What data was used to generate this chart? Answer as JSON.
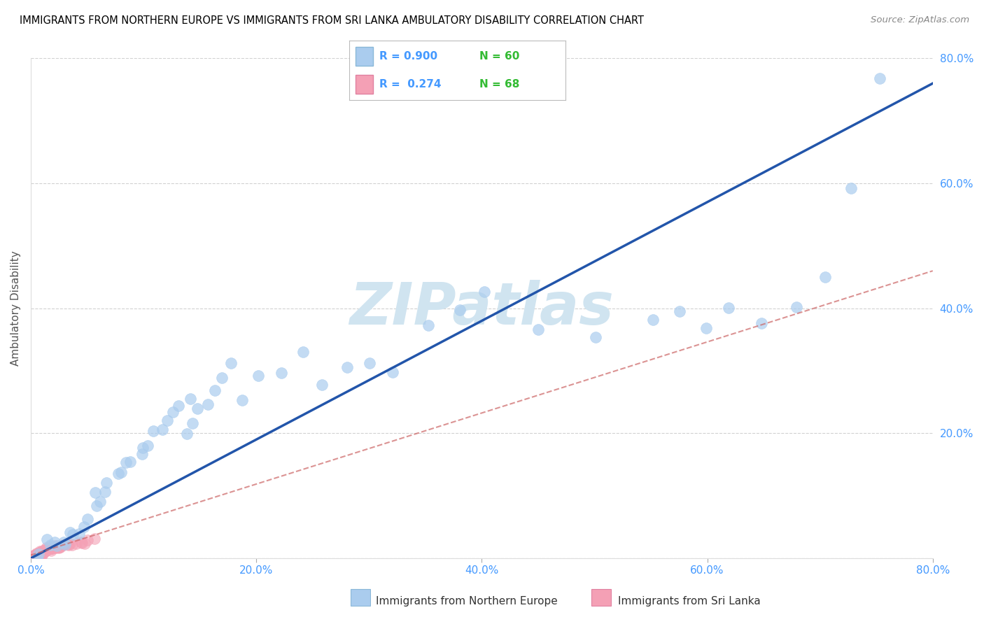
{
  "title": "IMMIGRANTS FROM NORTHERN EUROPE VS IMMIGRANTS FROM SRI LANKA AMBULATORY DISABILITY CORRELATION CHART",
  "source": "Source: ZipAtlas.com",
  "ylabel": "Ambulatory Disability",
  "xlim": [
    0,
    0.8
  ],
  "ylim": [
    0,
    0.8
  ],
  "xticks": [
    0.0,
    0.2,
    0.4,
    0.6,
    0.8
  ],
  "yticks": [
    0.0,
    0.2,
    0.4,
    0.6,
    0.8
  ],
  "xticklabels": [
    "0.0%",
    "20.0%",
    "40.0%",
    "60.0%",
    "80.0%"
  ],
  "yticklabels": [
    "",
    "20.0%",
    "40.0%",
    "60.0%",
    "80.0%"
  ],
  "legend_label1": "Immigrants from Northern Europe",
  "legend_label2": "Immigrants from Sri Lanka",
  "R1": 0.9,
  "N1": 60,
  "R2": 0.274,
  "N2": 68,
  "scatter1_color": "#aaccee",
  "scatter1_edge": "#aaccee",
  "scatter2_color": "#f4a0b5",
  "scatter2_edge": "#f4a0b5",
  "line1_color": "#2255aa",
  "line2_color": "#cc6666",
  "watermark": "ZIPatlas",
  "watermark_color": "#d0e4f0",
  "background_color": "#ffffff",
  "grid_color": "#cccccc",
  "title_color": "#000000",
  "tick_color": "#4499ff",
  "legend_r_color": "#4499ff",
  "legend_n_color": "#33bb33",
  "north_europe_x": [
    0.005,
    0.01,
    0.015,
    0.02,
    0.02,
    0.025,
    0.03,
    0.03,
    0.035,
    0.04,
    0.04,
    0.045,
    0.05,
    0.055,
    0.06,
    0.06,
    0.065,
    0.07,
    0.075,
    0.08,
    0.085,
    0.09,
    0.095,
    0.1,
    0.105,
    0.11,
    0.115,
    0.12,
    0.125,
    0.13,
    0.135,
    0.14,
    0.145,
    0.15,
    0.155,
    0.16,
    0.17,
    0.18,
    0.19,
    0.2,
    0.22,
    0.24,
    0.26,
    0.28,
    0.3,
    0.32,
    0.35,
    0.38,
    0.4,
    0.45,
    0.5,
    0.55,
    0.58,
    0.6,
    0.62,
    0.65,
    0.68,
    0.7,
    0.73,
    0.75
  ],
  "north_europe_y": [
    0.005,
    0.01,
    0.02,
    0.015,
    0.025,
    0.02,
    0.025,
    0.03,
    0.035,
    0.04,
    0.05,
    0.06,
    0.07,
    0.08,
    0.09,
    0.1,
    0.11,
    0.12,
    0.13,
    0.14,
    0.15,
    0.16,
    0.17,
    0.18,
    0.19,
    0.2,
    0.21,
    0.22,
    0.23,
    0.24,
    0.25,
    0.2,
    0.22,
    0.24,
    0.26,
    0.28,
    0.3,
    0.32,
    0.25,
    0.3,
    0.3,
    0.32,
    0.28,
    0.3,
    0.32,
    0.3,
    0.38,
    0.4,
    0.42,
    0.38,
    0.35,
    0.38,
    0.4,
    0.38,
    0.4,
    0.38,
    0.4,
    0.45,
    0.58,
    0.77
  ],
  "sri_lanka_x": [
    0.001,
    0.001,
    0.002,
    0.002,
    0.003,
    0.003,
    0.003,
    0.004,
    0.004,
    0.004,
    0.005,
    0.005,
    0.005,
    0.005,
    0.006,
    0.006,
    0.007,
    0.007,
    0.008,
    0.008,
    0.009,
    0.009,
    0.01,
    0.01,
    0.01,
    0.01,
    0.01,
    0.012,
    0.012,
    0.013,
    0.013,
    0.014,
    0.014,
    0.015,
    0.015,
    0.016,
    0.016,
    0.017,
    0.018,
    0.018,
    0.019,
    0.02,
    0.02,
    0.021,
    0.022,
    0.023,
    0.024,
    0.025,
    0.026,
    0.028,
    0.03,
    0.032,
    0.034,
    0.036,
    0.038,
    0.04,
    0.043,
    0.045,
    0.048,
    0.05,
    0.055,
    0.002,
    0.003,
    0.006,
    0.008,
    0.01,
    0.012,
    0.015
  ],
  "sri_lanka_y": [
    0.001,
    0.002,
    0.001,
    0.003,
    0.002,
    0.003,
    0.004,
    0.003,
    0.004,
    0.005,
    0.004,
    0.005,
    0.006,
    0.007,
    0.005,
    0.006,
    0.006,
    0.007,
    0.007,
    0.008,
    0.007,
    0.009,
    0.008,
    0.009,
    0.01,
    0.011,
    0.012,
    0.01,
    0.012,
    0.011,
    0.013,
    0.012,
    0.014,
    0.013,
    0.015,
    0.014,
    0.016,
    0.015,
    0.016,
    0.017,
    0.017,
    0.016,
    0.018,
    0.017,
    0.018,
    0.019,
    0.018,
    0.019,
    0.02,
    0.021,
    0.022,
    0.023,
    0.022,
    0.024,
    0.023,
    0.025,
    0.024,
    0.026,
    0.025,
    0.027,
    0.028,
    0.003,
    0.005,
    0.008,
    0.01,
    0.012,
    0.014,
    0.016
  ],
  "line1_x": [
    0.0,
    0.8
  ],
  "line1_y": [
    0.0,
    0.76
  ],
  "line2_x": [
    0.0,
    0.8
  ],
  "line2_y": [
    0.005,
    0.46
  ]
}
